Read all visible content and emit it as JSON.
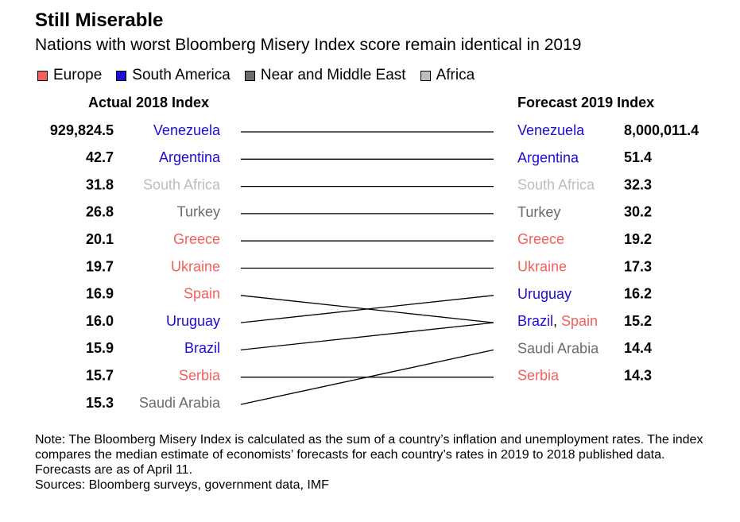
{
  "title": "Still Miserable",
  "subtitle": "Nations with worst Bloomberg Misery Index score remain identical in 2019",
  "legend": [
    {
      "label": "Europe",
      "color": "#f25f5c"
    },
    {
      "label": "South America",
      "color": "#1d0cd6"
    },
    {
      "label": "Near and Middle East",
      "color": "#6b6b6b"
    },
    {
      "label": "Africa",
      "color": "#bdbdbd"
    }
  ],
  "left_header": "Actual 2018 Index",
  "right_header": "Forecast 2019 Index",
  "chart_data": {
    "type": "slope",
    "left": [
      {
        "country": "Venezuela",
        "value": "929,824.5",
        "region": "South America"
      },
      {
        "country": "Argentina",
        "value": "42.7",
        "region": "South America"
      },
      {
        "country": "South Africa",
        "value": "31.8",
        "region": "Africa"
      },
      {
        "country": "Turkey",
        "value": "26.8",
        "region": "Near and Middle East"
      },
      {
        "country": "Greece",
        "value": "20.1",
        "region": "Europe"
      },
      {
        "country": "Ukraine",
        "value": "19.7",
        "region": "Europe"
      },
      {
        "country": "Spain",
        "value": "16.9",
        "region": "Europe"
      },
      {
        "country": "Uruguay",
        "value": "16.0",
        "region": "South America"
      },
      {
        "country": "Brazil",
        "value": "15.9",
        "region": "South America"
      },
      {
        "country": "Serbia",
        "value": "15.7",
        "region": "Europe"
      },
      {
        "country": "Saudi Arabia",
        "value": "15.3",
        "region": "Near and Middle East"
      }
    ],
    "right": [
      {
        "countries": [
          {
            "name": "Venezuela",
            "region": "South America"
          }
        ],
        "value": "8,000,011.4"
      },
      {
        "countries": [
          {
            "name": "Argentina",
            "region": "South America"
          }
        ],
        "value": "51.4"
      },
      {
        "countries": [
          {
            "name": "South Africa",
            "region": "Africa"
          }
        ],
        "value": "32.3"
      },
      {
        "countries": [
          {
            "name": "Turkey",
            "region": "Near and Middle East"
          }
        ],
        "value": "30.2"
      },
      {
        "countries": [
          {
            "name": "Greece",
            "region": "Europe"
          }
        ],
        "value": "19.2"
      },
      {
        "countries": [
          {
            "name": "Ukraine",
            "region": "Europe"
          }
        ],
        "value": "17.3"
      },
      {
        "countries": [
          {
            "name": "Uruguay",
            "region": "South America"
          }
        ],
        "value": "16.2"
      },
      {
        "countries": [
          {
            "name": "Brazil",
            "region": "South America"
          },
          {
            "name": "Spain",
            "region": "Europe"
          }
        ],
        "value": "15.2"
      },
      {
        "countries": [
          {
            "name": "Saudi Arabia",
            "region": "Near and Middle East"
          }
        ],
        "value": "14.4"
      },
      {
        "countries": [
          {
            "name": "Serbia",
            "region": "Europe"
          }
        ],
        "value": "14.3"
      }
    ]
  },
  "note": "Note: The Bloomberg Misery Index is calculated as the sum of a country’s inflation and unemployment rates. The index compares the median estimate of economists’ forecasts for each country’s rates in 2019 to 2018 published data. Forecasts are as of April 11.",
  "sources": "Sources: Bloomberg surveys, government data, IMF"
}
